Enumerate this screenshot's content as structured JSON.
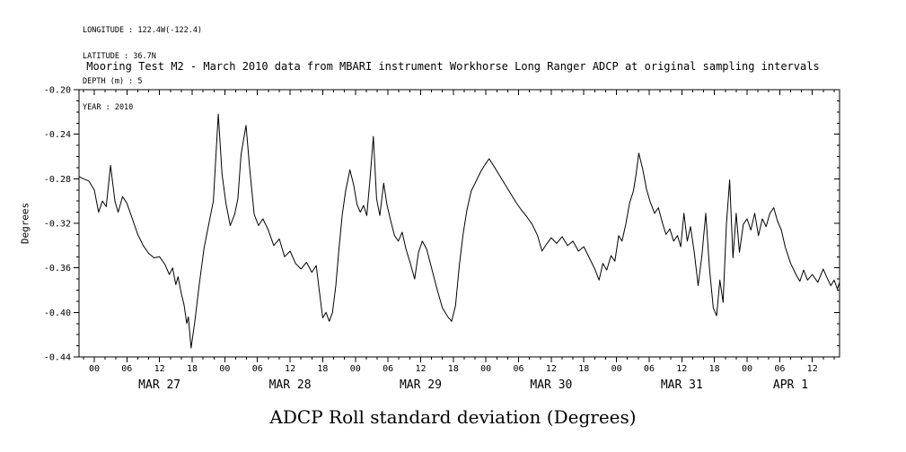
{
  "meta": {
    "lines": [
      "LONGITUDE : 122.4W(-122.4)",
      "LATITUDE : 36.7N",
      "DEPTH (m) : 5",
      "YEAR : 2010"
    ]
  },
  "chart_data": {
    "type": "line",
    "title": "Mooring Test M2 - March 2010 data from MBARI instrument Workhorse Long Ranger ADCP at original sampling intervals",
    "bottom_title": "ADCP Roll standard deviation (Degrees)",
    "ylabel": "Degrees",
    "ylim": [
      -0.44,
      -0.2
    ],
    "ytick_values": [
      -0.2,
      -0.24,
      -0.28,
      -0.32,
      -0.36,
      -0.4,
      -0.44
    ],
    "ytick_labels": [
      "-0.20",
      "-0.24",
      "-0.28",
      "-0.32",
      "-0.36",
      "-0.40",
      "-0.44"
    ],
    "y_minor_step": 0.01,
    "x_range_hours": [
      -2.8,
      137
    ],
    "x_major_step_hours": 6,
    "x_minor_step_hours": 2,
    "hour_labels_cycle": [
      "00",
      "06",
      "12",
      "18"
    ],
    "day_labels": [
      {
        "label": "MAR 27",
        "t_hours": 12
      },
      {
        "label": "MAR 28",
        "t_hours": 36
      },
      {
        "label": "MAR 29",
        "t_hours": 60
      },
      {
        "label": "MAR 30",
        "t_hours": 84
      },
      {
        "label": "MAR 31",
        "t_hours": 108
      },
      {
        "label": "APR 1",
        "t_hours": 128
      }
    ],
    "grid": false,
    "legend": false,
    "line_color": "#000000",
    "background_color": "#ffffff",
    "series": [
      {
        "name": "ADCP roll standard deviation",
        "units": "Degrees",
        "points": [
          [
            -2.8,
            -0.278
          ],
          [
            -2.0,
            -0.28
          ],
          [
            -1.0,
            -0.282
          ],
          [
            0.0,
            -0.29
          ],
          [
            0.8,
            -0.31
          ],
          [
            1.5,
            -0.3
          ],
          [
            2.2,
            -0.305
          ],
          [
            3.0,
            -0.268
          ],
          [
            3.8,
            -0.3
          ],
          [
            4.4,
            -0.31
          ],
          [
            5.2,
            -0.296
          ],
          [
            6.0,
            -0.302
          ],
          [
            7.0,
            -0.316
          ],
          [
            8.0,
            -0.33
          ],
          [
            9.0,
            -0.34
          ],
          [
            10.0,
            -0.347
          ],
          [
            11.0,
            -0.351
          ],
          [
            12.0,
            -0.35
          ],
          [
            13.0,
            -0.357
          ],
          [
            13.8,
            -0.366
          ],
          [
            14.4,
            -0.36
          ],
          [
            15.0,
            -0.375
          ],
          [
            15.4,
            -0.368
          ],
          [
            16.0,
            -0.383
          ],
          [
            16.5,
            -0.393
          ],
          [
            17.0,
            -0.41
          ],
          [
            17.3,
            -0.404
          ],
          [
            17.8,
            -0.432
          ],
          [
            18.5,
            -0.408
          ],
          [
            19.3,
            -0.375
          ],
          [
            20.2,
            -0.342
          ],
          [
            21.0,
            -0.322
          ],
          [
            21.9,
            -0.3
          ],
          [
            22.8,
            -0.222
          ],
          [
            23.5,
            -0.276
          ],
          [
            24.2,
            -0.302
          ],
          [
            25.0,
            -0.322
          ],
          [
            25.8,
            -0.312
          ],
          [
            26.4,
            -0.298
          ],
          [
            27.0,
            -0.258
          ],
          [
            27.9,
            -0.232
          ],
          [
            28.6,
            -0.272
          ],
          [
            29.4,
            -0.312
          ],
          [
            30.2,
            -0.322
          ],
          [
            31.0,
            -0.316
          ],
          [
            32.0,
            -0.326
          ],
          [
            33.0,
            -0.34
          ],
          [
            34.0,
            -0.334
          ],
          [
            35.0,
            -0.35
          ],
          [
            36.0,
            -0.345
          ],
          [
            37.0,
            -0.356
          ],
          [
            38.0,
            -0.361
          ],
          [
            39.0,
            -0.355
          ],
          [
            40.0,
            -0.364
          ],
          [
            40.8,
            -0.358
          ],
          [
            41.3,
            -0.378
          ],
          [
            42.0,
            -0.405
          ],
          [
            42.6,
            -0.4
          ],
          [
            43.2,
            -0.408
          ],
          [
            43.8,
            -0.4
          ],
          [
            44.4,
            -0.376
          ],
          [
            45.0,
            -0.342
          ],
          [
            45.6,
            -0.312
          ],
          [
            46.2,
            -0.291
          ],
          [
            47.0,
            -0.272
          ],
          [
            47.7,
            -0.286
          ],
          [
            48.3,
            -0.303
          ],
          [
            48.9,
            -0.31
          ],
          [
            49.5,
            -0.304
          ],
          [
            50.1,
            -0.313
          ],
          [
            50.7,
            -0.28
          ],
          [
            51.3,
            -0.242
          ],
          [
            51.9,
            -0.298
          ],
          [
            52.5,
            -0.313
          ],
          [
            53.2,
            -0.284
          ],
          [
            53.8,
            -0.303
          ],
          [
            54.5,
            -0.318
          ],
          [
            55.2,
            -0.331
          ],
          [
            55.9,
            -0.336
          ],
          [
            56.6,
            -0.328
          ],
          [
            57.3,
            -0.343
          ],
          [
            58.1,
            -0.356
          ],
          [
            58.9,
            -0.37
          ],
          [
            59.6,
            -0.346
          ],
          [
            60.3,
            -0.336
          ],
          [
            61.1,
            -0.343
          ],
          [
            62.0,
            -0.36
          ],
          [
            63.0,
            -0.379
          ],
          [
            64.0,
            -0.396
          ],
          [
            65.0,
            -0.404
          ],
          [
            65.7,
            -0.408
          ],
          [
            66.4,
            -0.394
          ],
          [
            67.1,
            -0.358
          ],
          [
            67.8,
            -0.33
          ],
          [
            68.5,
            -0.308
          ],
          [
            69.3,
            -0.291
          ],
          [
            70.1,
            -0.283
          ],
          [
            71.0,
            -0.274
          ],
          [
            72.0,
            -0.266
          ],
          [
            72.6,
            -0.262
          ],
          [
            73.5,
            -0.269
          ],
          [
            74.5,
            -0.277
          ],
          [
            75.5,
            -0.285
          ],
          [
            76.5,
            -0.293
          ],
          [
            77.5,
            -0.301
          ],
          [
            78.5,
            -0.308
          ],
          [
            79.5,
            -0.314
          ],
          [
            80.5,
            -0.321
          ],
          [
            81.5,
            -0.331
          ],
          [
            82.3,
            -0.345
          ],
          [
            83.1,
            -0.339
          ],
          [
            84.0,
            -0.333
          ],
          [
            85.0,
            -0.338
          ],
          [
            86.0,
            -0.332
          ],
          [
            87.0,
            -0.34
          ],
          [
            88.0,
            -0.336
          ],
          [
            89.0,
            -0.345
          ],
          [
            90.0,
            -0.341
          ],
          [
            91.0,
            -0.351
          ],
          [
            92.0,
            -0.361
          ],
          [
            92.8,
            -0.371
          ],
          [
            93.5,
            -0.356
          ],
          [
            94.2,
            -0.362
          ],
          [
            95.0,
            -0.349
          ],
          [
            95.7,
            -0.354
          ],
          [
            96.4,
            -0.331
          ],
          [
            97.0,
            -0.336
          ],
          [
            97.7,
            -0.321
          ],
          [
            98.4,
            -0.302
          ],
          [
            99.1,
            -0.291
          ],
          [
            99.6,
            -0.276
          ],
          [
            100.1,
            -0.257
          ],
          [
            100.8,
            -0.271
          ],
          [
            101.5,
            -0.289
          ],
          [
            102.2,
            -0.301
          ],
          [
            103.0,
            -0.311
          ],
          [
            103.7,
            -0.306
          ],
          [
            104.4,
            -0.319
          ],
          [
            105.1,
            -0.33
          ],
          [
            105.8,
            -0.325
          ],
          [
            106.5,
            -0.336
          ],
          [
            107.2,
            -0.331
          ],
          [
            107.8,
            -0.341
          ],
          [
            108.4,
            -0.311
          ],
          [
            109.0,
            -0.336
          ],
          [
            109.6,
            -0.323
          ],
          [
            110.3,
            -0.346
          ],
          [
            111.0,
            -0.376
          ],
          [
            111.7,
            -0.349
          ],
          [
            112.4,
            -0.311
          ],
          [
            113.1,
            -0.361
          ],
          [
            113.8,
            -0.396
          ],
          [
            114.4,
            -0.403
          ],
          [
            115.0,
            -0.371
          ],
          [
            115.6,
            -0.391
          ],
          [
            116.2,
            -0.321
          ],
          [
            116.8,
            -0.281
          ],
          [
            117.4,
            -0.351
          ],
          [
            118.0,
            -0.311
          ],
          [
            118.6,
            -0.346
          ],
          [
            119.3,
            -0.321
          ],
          [
            120.0,
            -0.316
          ],
          [
            120.7,
            -0.326
          ],
          [
            121.4,
            -0.311
          ],
          [
            122.1,
            -0.331
          ],
          [
            122.8,
            -0.316
          ],
          [
            123.5,
            -0.323
          ],
          [
            124.2,
            -0.311
          ],
          [
            124.9,
            -0.306
          ],
          [
            125.6,
            -0.318
          ],
          [
            126.3,
            -0.326
          ],
          [
            127.0,
            -0.341
          ],
          [
            128.0,
            -0.356
          ],
          [
            129.0,
            -0.366
          ],
          [
            129.7,
            -0.372
          ],
          [
            130.4,
            -0.362
          ],
          [
            131.1,
            -0.371
          ],
          [
            132.0,
            -0.366
          ],
          [
            133.0,
            -0.373
          ],
          [
            134.0,
            -0.361
          ],
          [
            134.7,
            -0.369
          ],
          [
            135.4,
            -0.376
          ],
          [
            136.0,
            -0.371
          ],
          [
            136.6,
            -0.379
          ],
          [
            137.0,
            -0.373
          ]
        ]
      }
    ]
  }
}
